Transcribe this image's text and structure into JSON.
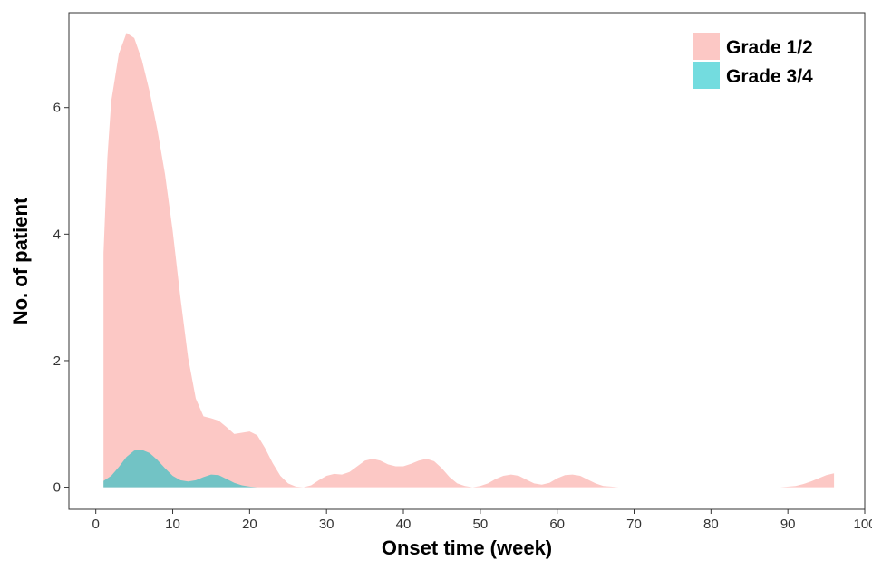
{
  "chart_data": {
    "type": "area",
    "xlabel": "Onset time (week)",
    "ylabel": "No. of patient",
    "xlim": [
      -3.5,
      100
    ],
    "ylim": [
      -0.35,
      7.5
    ],
    "x_ticks": [
      0,
      10,
      20,
      30,
      40,
      50,
      60,
      70,
      80,
      90,
      100
    ],
    "y_ticks": [
      0,
      2,
      4,
      6
    ],
    "grid": false,
    "legend_position": "top-right",
    "series": [
      {
        "name": "Grade 1/2",
        "color": "#F8766D",
        "fill_opacity": 0.4,
        "points": [
          [
            1,
            3.7
          ],
          [
            1.5,
            5.2
          ],
          [
            2,
            6.1
          ],
          [
            3,
            6.85
          ],
          [
            4,
            7.18
          ],
          [
            5,
            7.1
          ],
          [
            6,
            6.75
          ],
          [
            7,
            6.25
          ],
          [
            8,
            5.65
          ],
          [
            9,
            4.95
          ],
          [
            10,
            4.05
          ],
          [
            11,
            3.0
          ],
          [
            12,
            2.05
          ],
          [
            13,
            1.4
          ],
          [
            14,
            1.12
          ],
          [
            15,
            1.09
          ],
          [
            16,
            1.05
          ],
          [
            17,
            0.95
          ],
          [
            18,
            0.84
          ],
          [
            19,
            0.86
          ],
          [
            20,
            0.88
          ],
          [
            21,
            0.82
          ],
          [
            22,
            0.62
          ],
          [
            23,
            0.38
          ],
          [
            24,
            0.18
          ],
          [
            25,
            0.06
          ],
          [
            26,
            0.01
          ],
          [
            27,
            0.0
          ],
          [
            28,
            0.03
          ],
          [
            29,
            0.11
          ],
          [
            30,
            0.18
          ],
          [
            31,
            0.21
          ],
          [
            32,
            0.2
          ],
          [
            33,
            0.24
          ],
          [
            34,
            0.33
          ],
          [
            35,
            0.42
          ],
          [
            36,
            0.45
          ],
          [
            37,
            0.42
          ],
          [
            38,
            0.36
          ],
          [
            39,
            0.33
          ],
          [
            40,
            0.33
          ],
          [
            41,
            0.37
          ],
          [
            42,
            0.42
          ],
          [
            43,
            0.45
          ],
          [
            44,
            0.41
          ],
          [
            45,
            0.3
          ],
          [
            46,
            0.16
          ],
          [
            47,
            0.06
          ],
          [
            48,
            0.02
          ],
          [
            49,
            0.0
          ],
          [
            50,
            0.02
          ],
          [
            51,
            0.06
          ],
          [
            52,
            0.13
          ],
          [
            53,
            0.18
          ],
          [
            54,
            0.2
          ],
          [
            55,
            0.18
          ],
          [
            56,
            0.12
          ],
          [
            57,
            0.06
          ],
          [
            58,
            0.04
          ],
          [
            59,
            0.07
          ],
          [
            60,
            0.14
          ],
          [
            61,
            0.19
          ],
          [
            62,
            0.2
          ],
          [
            63,
            0.18
          ],
          [
            64,
            0.12
          ],
          [
            65,
            0.06
          ],
          [
            66,
            0.02
          ],
          [
            67,
            0.01
          ],
          [
            68,
            0.0
          ],
          [
            75,
            0.0
          ],
          [
            85,
            0.0
          ],
          [
            89,
            0.0
          ],
          [
            91,
            0.02
          ],
          [
            92,
            0.05
          ],
          [
            93,
            0.09
          ],
          [
            94,
            0.14
          ],
          [
            95,
            0.19
          ],
          [
            96,
            0.22
          ]
        ]
      },
      {
        "name": "Grade 3/4",
        "color": "#00BFC4",
        "fill_opacity": 0.55,
        "points": [
          [
            1,
            0.1
          ],
          [
            2,
            0.18
          ],
          [
            3,
            0.32
          ],
          [
            4,
            0.48
          ],
          [
            5,
            0.58
          ],
          [
            6,
            0.59
          ],
          [
            7,
            0.54
          ],
          [
            8,
            0.43
          ],
          [
            9,
            0.3
          ],
          [
            10,
            0.18
          ],
          [
            11,
            0.11
          ],
          [
            12,
            0.09
          ],
          [
            13,
            0.11
          ],
          [
            14,
            0.16
          ],
          [
            15,
            0.2
          ],
          [
            16,
            0.19
          ],
          [
            17,
            0.13
          ],
          [
            18,
            0.07
          ],
          [
            19,
            0.03
          ],
          [
            20,
            0.01
          ],
          [
            21,
            0.0
          ],
          [
            22,
            0.0
          ]
        ]
      }
    ]
  }
}
